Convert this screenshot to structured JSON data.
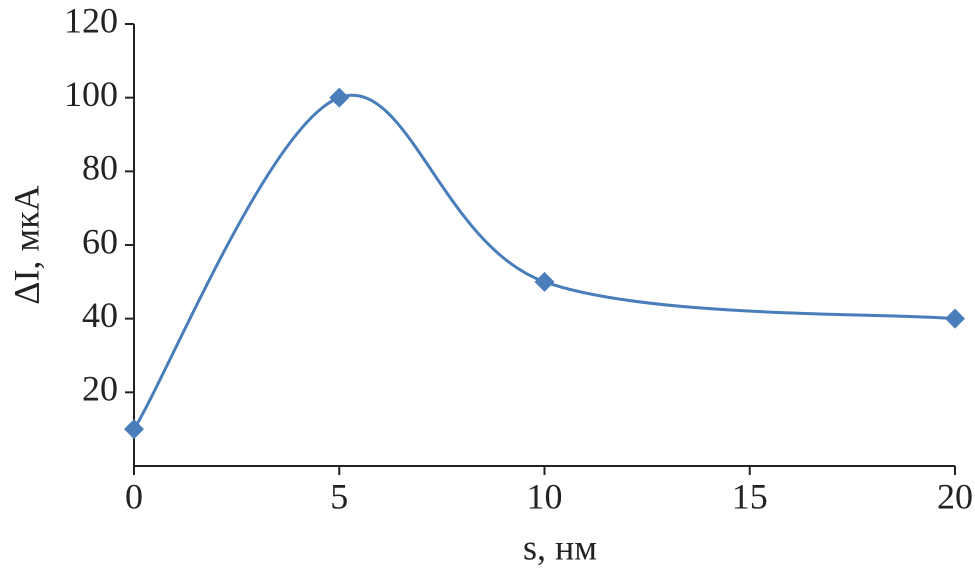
{
  "chart_data": {
    "type": "line",
    "x_label": "s, нм",
    "y_label": "ΔI, мкА",
    "x": [
      0,
      5,
      10,
      20
    ],
    "values": [
      10,
      100,
      50,
      40
    ],
    "color": "#4a7ebb",
    "xlim": [
      0,
      20
    ],
    "xticks": [
      0,
      5,
      10,
      15,
      20
    ],
    "ylim": [
      0,
      120
    ],
    "yticks": [
      20,
      40,
      60,
      80,
      100,
      120
    ],
    "smooth": true,
    "marker": "diamond"
  }
}
